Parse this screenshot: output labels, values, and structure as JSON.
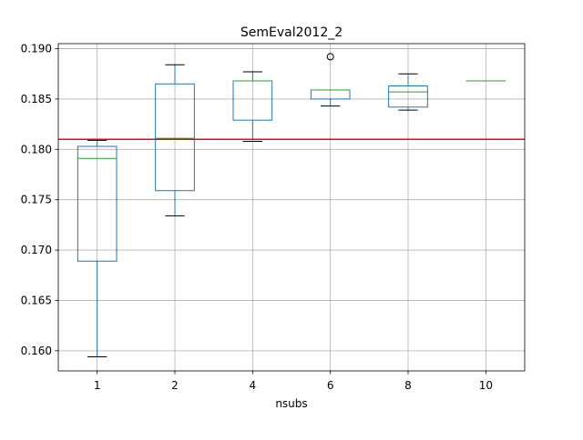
{
  "chart_data": {
    "type": "box",
    "title": "SemEval2012_2",
    "xlabel": "nsubs",
    "ylabel": "",
    "categories": [
      "1",
      "2",
      "4",
      "6",
      "8",
      "10"
    ],
    "ylim": [
      0.158,
      0.1905
    ],
    "yticks": [
      "0.160",
      "0.165",
      "0.170",
      "0.175",
      "0.180",
      "0.185",
      "0.190"
    ],
    "grid": true,
    "reference_line": {
      "y": 0.181,
      "color": "#ff0000"
    },
    "boxes": [
      {
        "whisker_low": 0.1594,
        "q1": 0.1689,
        "median": 0.1791,
        "q3": 0.1803,
        "whisker_high": 0.1809,
        "outliers": []
      },
      {
        "whisker_low": 0.1734,
        "q1": 0.1759,
        "median": 0.1811,
        "q3": 0.1865,
        "whisker_high": 0.1884,
        "outliers": []
      },
      {
        "whisker_low": 0.1808,
        "q1": 0.1829,
        "median": 0.1868,
        "q3": 0.1868,
        "whisker_high": 0.1877,
        "outliers": []
      },
      {
        "whisker_low": 0.1843,
        "q1": 0.185,
        "median": 0.1859,
        "q3": 0.1859,
        "whisker_high": 0.1859,
        "outliers": [
          0.1892
        ]
      },
      {
        "whisker_low": 0.1839,
        "q1": 0.1842,
        "median": 0.1857,
        "q3": 0.1863,
        "whisker_high": 0.1875,
        "outliers": []
      },
      {
        "whisker_low": 0.1868,
        "q1": 0.1868,
        "median": 0.1868,
        "q3": 0.1868,
        "whisker_high": 0.1868,
        "outliers": []
      }
    ],
    "colors": {
      "box": "#1f77b4",
      "median": "#2ca02c",
      "whisker_cap": "#000000",
      "grid": "#b0b0b0",
      "axis": "#000000"
    }
  }
}
